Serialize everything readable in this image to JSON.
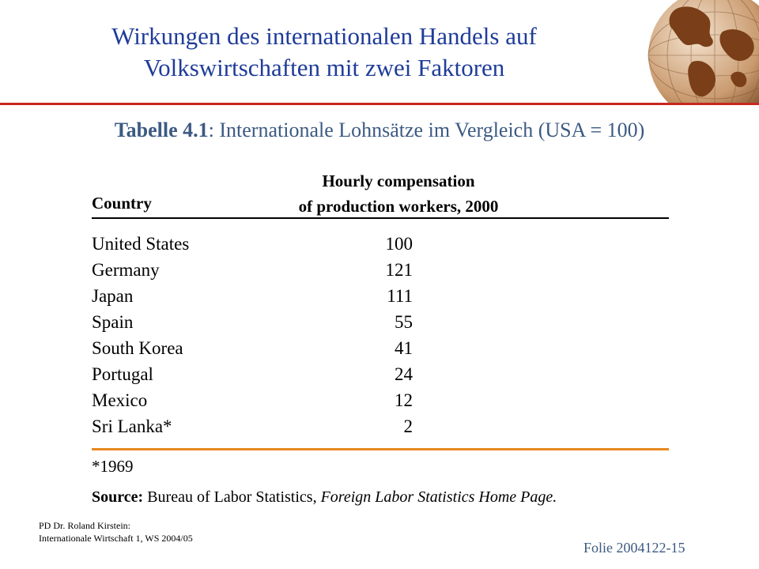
{
  "header": {
    "title_line1": "Wirkungen des internationalen Handels auf",
    "title_line2": "Volkswirtschaften mit zwei Faktoren",
    "accent_color": "#c8281e",
    "logo": "globe-icon"
  },
  "subtitle": {
    "bold": "Tabelle 4.1",
    "rest": ": Internationale Lohnsätze im Vergleich (USA = 100)"
  },
  "table": {
    "col_country": "Country",
    "col_comp_line1": "Hourly compensation",
    "col_comp_line2": "of production workers, 2000",
    "rows": [
      {
        "country": "United States",
        "value": "100"
      },
      {
        "country": "Germany",
        "value": "121"
      },
      {
        "country": "Japan",
        "value": "111"
      },
      {
        "country": "Spain",
        "value": "55"
      },
      {
        "country": "South Korea",
        "value": "41"
      },
      {
        "country": "Portugal",
        "value": "24"
      },
      {
        "country": "Mexico",
        "value": "12"
      },
      {
        "country": "Sri Lanka*",
        "value": "2"
      }
    ],
    "footnote": "*1969",
    "source_label": "Source:",
    "source_text": " Bureau of Labor Statistics, ",
    "source_pub": "Foreign Labor Statistics Home Page."
  },
  "footer": {
    "author": "PD Dr. Roland Kirstein:",
    "course": "Internationale Wirtschaft 1, WS 2004/05",
    "slide": "Folie 2004122-15"
  }
}
